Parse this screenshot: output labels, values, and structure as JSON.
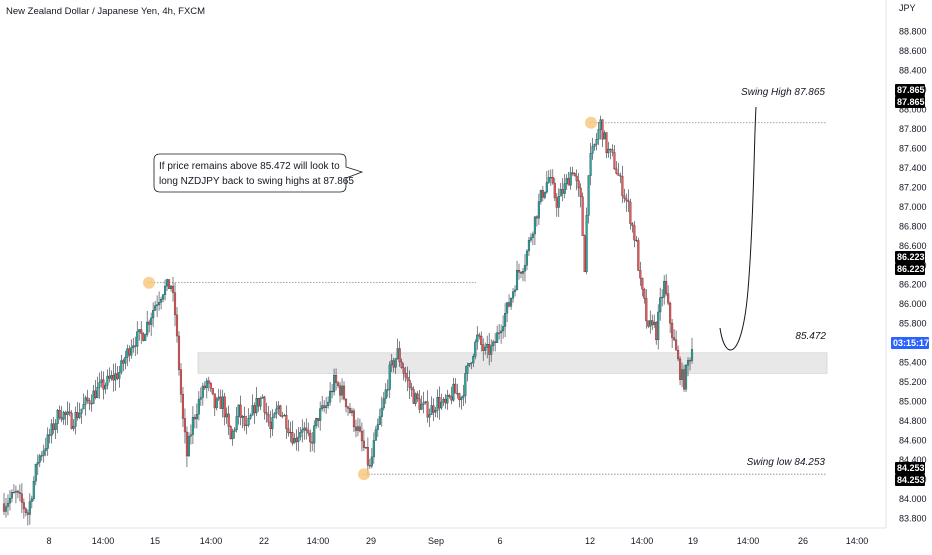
{
  "chart_title": "New Zealand Dollar / Japanese Yen, 4h, FXCM",
  "currency_label": "JPY",
  "colors": {
    "up": "#26a69a",
    "down": "#ef5350",
    "zone": "#e8e8e8",
    "marker": "#f7c57a",
    "countdown_tag": "#2962ff",
    "price_tag": "#000000"
  },
  "callout": {
    "line1": "If price remains above 85.472 will look to",
    "line2": "long NZDJPY back to swing highs at 87.865"
  },
  "annotations": {
    "swing_high": "Swing High 87.865",
    "swing_low": "Swing low 84.253",
    "support": "85.472"
  },
  "price_tags": {
    "swing_high_a": "87.865",
    "swing_high_b": "87.865",
    "level_a": "86.223",
    "level_b": "86.223",
    "countdown": "03:15:17",
    "swing_low_a": "84.253",
    "swing_low_b": "84.253"
  },
  "chart_data": {
    "type": "candlestick",
    "title": "New Zealand Dollar / Japanese Yen, 4h, FXCM",
    "symbol": "NZDJPY",
    "timeframe": "4h",
    "source": "FXCM",
    "ylabel": "JPY",
    "ylim": [
      83.7,
      88.9
    ],
    "y_ticks": [
      "88.800",
      "88.600",
      "88.400",
      "88.200",
      "88.000",
      "87.800",
      "87.600",
      "87.400",
      "87.200",
      "87.000",
      "86.800",
      "86.600",
      "86.400",
      "86.200",
      "86.000",
      "85.800",
      "85.600",
      "85.400",
      "85.200",
      "85.000",
      "84.800",
      "84.600",
      "84.400",
      "84.200",
      "84.000",
      "83.800"
    ],
    "x_ticks": [
      "8",
      "14:00",
      "15",
      "14:00",
      "22",
      "14:00",
      "29",
      "Sep",
      "6",
      "12",
      "14:00",
      "19",
      "14:00",
      "26",
      "14:00"
    ],
    "levels": {
      "swing_high": 87.865,
      "swing_low": 84.253,
      "resistance_level": 86.223,
      "support": 85.472,
      "support_zone": [
        85.29,
        85.5
      ]
    },
    "projection": "curved path from the zone back up toward the 87.865 swing high",
    "markers": [
      {
        "label": "swing-high-1",
        "price": 86.22
      },
      {
        "label": "swing-high-2",
        "price": 87.865
      },
      {
        "label": "swing-low",
        "price": 84.253
      }
    ],
    "waypoints": [
      [
        0,
        83.95
      ],
      [
        6,
        84.05
      ],
      [
        12,
        83.85
      ],
      [
        17,
        84.4
      ],
      [
        22,
        84.6
      ],
      [
        28,
        84.9
      ],
      [
        34,
        84.8
      ],
      [
        40,
        84.95
      ],
      [
        46,
        85.1
      ],
      [
        52,
        85.2
      ],
      [
        58,
        85.3
      ],
      [
        64,
        85.6
      ],
      [
        70,
        85.7
      ],
      [
        76,
        86.0
      ],
      [
        80,
        86.15
      ],
      [
        84,
        86.2
      ],
      [
        86,
        85.9
      ],
      [
        88,
        85.35
      ],
      [
        90,
        84.8
      ],
      [
        92,
        84.45
      ],
      [
        95,
        84.8
      ],
      [
        98,
        85.0
      ],
      [
        102,
        85.2
      ],
      [
        106,
        84.95
      ],
      [
        110,
        85.0
      ],
      [
        114,
        84.6
      ],
      [
        118,
        84.9
      ],
      [
        122,
        84.7
      ],
      [
        126,
        84.95
      ],
      [
        130,
        85.05
      ],
      [
        134,
        84.7
      ],
      [
        138,
        84.95
      ],
      [
        142,
        84.8
      ],
      [
        146,
        84.6
      ],
      [
        150,
        84.75
      ],
      [
        154,
        84.55
      ],
      [
        158,
        84.85
      ],
      [
        162,
        84.95
      ],
      [
        166,
        85.2
      ],
      [
        170,
        85.1
      ],
      [
        174,
        84.9
      ],
      [
        178,
        84.7
      ],
      [
        182,
        84.45
      ],
      [
        184,
        84.3
      ],
      [
        186,
        84.55
      ],
      [
        190,
        84.9
      ],
      [
        194,
        85.3
      ],
      [
        198,
        85.5
      ],
      [
        202,
        85.25
      ],
      [
        206,
        85.05
      ],
      [
        210,
        84.95
      ],
      [
        214,
        84.9
      ],
      [
        218,
        85.0
      ],
      [
        222,
        84.95
      ],
      [
        226,
        85.1
      ],
      [
        230,
        85.05
      ],
      [
        234,
        85.4
      ],
      [
        238,
        85.65
      ],
      [
        242,
        85.5
      ],
      [
        246,
        85.55
      ],
      [
        250,
        85.8
      ],
      [
        254,
        86.0
      ],
      [
        258,
        86.3
      ],
      [
        262,
        86.45
      ],
      [
        266,
        86.8
      ],
      [
        270,
        87.1
      ],
      [
        274,
        87.3
      ],
      [
        278,
        87.05
      ],
      [
        282,
        87.2
      ],
      [
        286,
        87.4
      ],
      [
        290,
        87.05
      ],
      [
        292,
        86.4
      ],
      [
        294,
        87.4
      ],
      [
        298,
        87.7
      ],
      [
        300,
        87.86
      ],
      [
        303,
        87.6
      ],
      [
        306,
        87.5
      ],
      [
        310,
        87.25
      ],
      [
        314,
        87.0
      ],
      [
        318,
        86.6
      ],
      [
        320,
        86.2
      ],
      [
        322,
        86.0
      ],
      [
        324,
        85.7
      ],
      [
        326,
        85.85
      ],
      [
        328,
        85.7
      ],
      [
        330,
        86.0
      ],
      [
        332,
        86.2
      ],
      [
        334,
        85.95
      ],
      [
        336,
        85.7
      ],
      [
        338,
        85.5
      ],
      [
        340,
        85.3
      ],
      [
        342,
        85.2
      ],
      [
        344,
        85.4
      ],
      [
        346,
        85.55
      ]
    ]
  }
}
